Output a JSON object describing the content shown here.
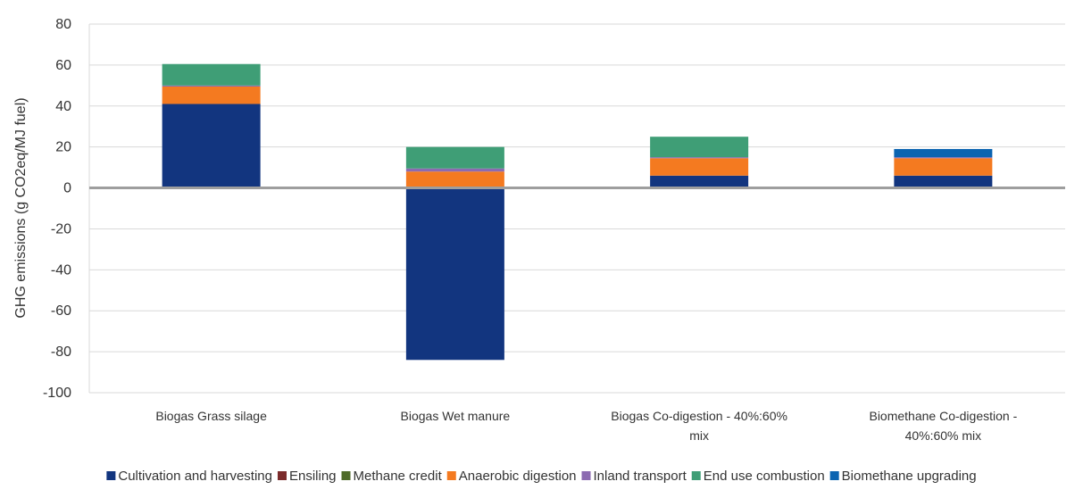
{
  "chart_data": {
    "type": "bar",
    "stacked": true,
    "ylabel": "GHG emissions (g CO2eq/MJ fuel)",
    "xlabel": "",
    "ylim": [
      -100,
      80
    ],
    "yticks": [
      80,
      60,
      40,
      20,
      0,
      -20,
      -40,
      -60,
      -80,
      -100
    ],
    "grid": true,
    "legend_position": "bottom",
    "categories": [
      [
        "Biogas Grass silage"
      ],
      [
        "Biogas Wet manure"
      ],
      [
        "Biogas Co-digestion - 40%:60%",
        "mix"
      ],
      [
        "Biomethane Co-digestion -",
        "40%:60% mix"
      ]
    ],
    "series": [
      {
        "name": "Cultivation and harvesting",
        "color": "#12357f",
        "values": [
          41,
          -84,
          6,
          6
        ]
      },
      {
        "name": "Ensiling",
        "color": "#7b2b2b",
        "values": [
          0,
          0,
          0,
          0
        ]
      },
      {
        "name": "Methane credit",
        "color": "#4f6b2a",
        "values": [
          0,
          0,
          0,
          0
        ]
      },
      {
        "name": "Anaerobic digestion",
        "color": "#f47a20",
        "values": [
          8.5,
          8,
          8.5,
          8.5
        ]
      },
      {
        "name": "Inland transport",
        "color": "#8c6bb1",
        "values": [
          0.5,
          1.5,
          0.5,
          0.5
        ]
      },
      {
        "name": "End use combustion",
        "color": "#3f9e76",
        "values": [
          10.5,
          10.5,
          10,
          0
        ]
      },
      {
        "name": "Biomethane upgrading",
        "color": "#0b64b1",
        "values": [
          0,
          0,
          0,
          4
        ]
      }
    ]
  }
}
